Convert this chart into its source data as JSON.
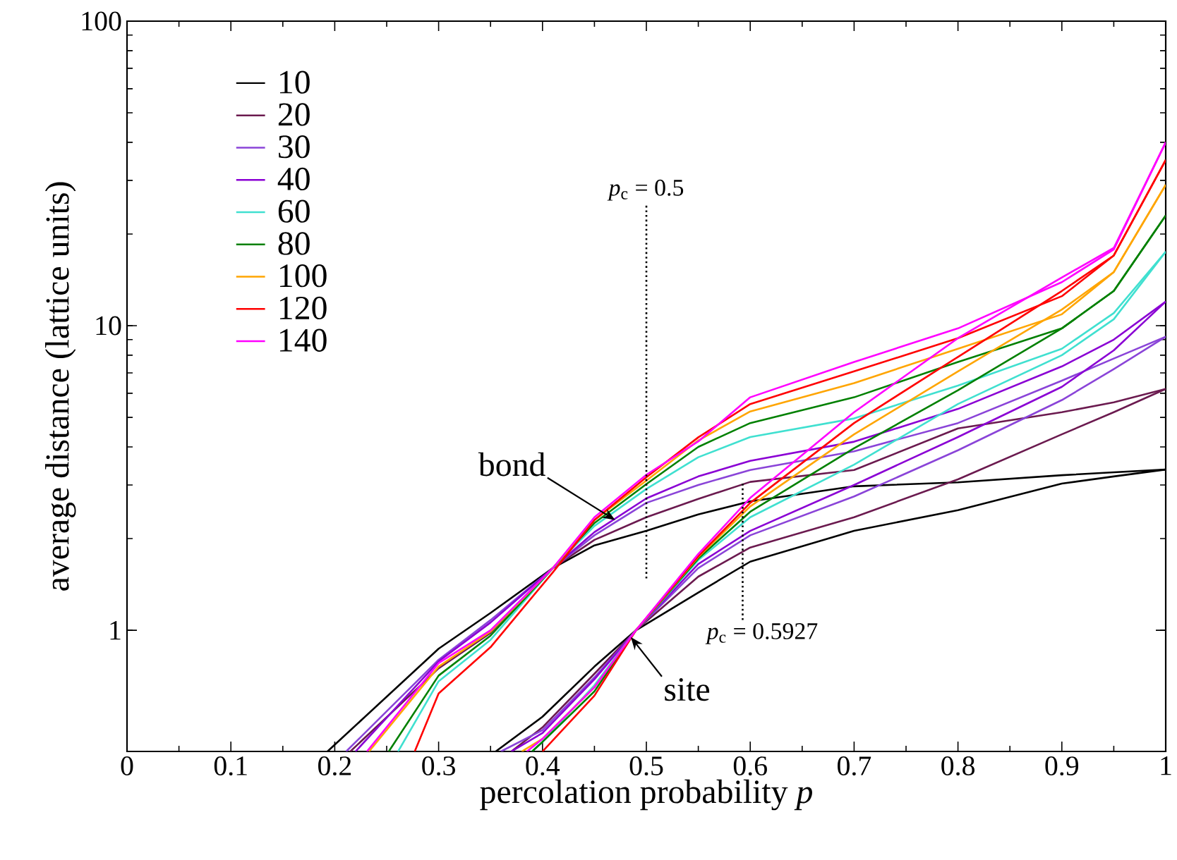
{
  "chart_data": {
    "type": "line",
    "xlabel": "percolation probability *p*",
    "ylabel": "average distance (lattice units)",
    "xlim": [
      0,
      1
    ],
    "ylim": [
      0.4,
      100
    ],
    "log": "y",
    "xticks": [
      0,
      0.1,
      0.2,
      0.3,
      0.4,
      0.5,
      0.6,
      0.7,
      0.8,
      0.9,
      1
    ],
    "yticks": [
      1,
      10,
      100
    ],
    "legend": "top left",
    "marker": "none",
    "line_style": "solid",
    "series": [
      {
        "name": "10",
        "color": "#000000",
        "x": [
          0.193,
          0.3,
          0.35,
          0.41,
          0.45,
          0.5,
          0.55,
          0.6,
          0.7,
          0.8,
          0.9,
          0.95,
          1.0
        ],
        "values": [
          0.4,
          0.87,
          1.14,
          1.6,
          1.9,
          2.12,
          2.4,
          2.65,
          2.97,
          3.06,
          3.23,
          3.3,
          3.37
        ]
      },
      {
        "name": "20",
        "color": "#6b1a4f",
        "x": [
          0.215,
          0.3,
          0.35,
          0.41,
          0.45,
          0.5,
          0.55,
          0.6,
          0.7,
          0.8,
          0.9,
          0.95,
          1.0
        ],
        "values": [
          0.4,
          0.75,
          0.98,
          1.6,
          1.98,
          2.35,
          2.7,
          3.07,
          3.36,
          4.6,
          5.2,
          5.6,
          6.2
        ]
      },
      {
        "name": "30",
        "color": "#8a44d8",
        "x": [
          0.211,
          0.3,
          0.35,
          0.41,
          0.45,
          0.5,
          0.55,
          0.6,
          0.7,
          0.8,
          0.9,
          0.95,
          1.0
        ],
        "values": [
          0.4,
          0.8,
          1.08,
          1.6,
          2.05,
          2.62,
          3.0,
          3.36,
          3.87,
          4.79,
          6.6,
          7.8,
          9.2
        ]
      },
      {
        "name": "40",
        "color": "#8a00d4",
        "x": [
          0.22,
          0.3,
          0.35,
          0.41,
          0.45,
          0.5,
          0.55,
          0.6,
          0.7,
          0.8,
          0.9,
          0.95,
          1.0
        ],
        "values": [
          0.4,
          0.79,
          1.06,
          1.6,
          2.1,
          2.71,
          3.2,
          3.6,
          4.16,
          5.33,
          7.35,
          9.0,
          12
        ]
      },
      {
        "name": "60",
        "color": "#40e0d0",
        "x": [
          0.261,
          0.3,
          0.35,
          0.41,
          0.45,
          0.5,
          0.55,
          0.6,
          0.7,
          0.8,
          0.9,
          0.95,
          1.0
        ],
        "values": [
          0.4,
          0.68,
          0.93,
          1.6,
          2.2,
          2.91,
          3.7,
          4.31,
          4.96,
          6.36,
          8.4,
          11,
          17.5
        ]
      },
      {
        "name": "80",
        "color": "#008000",
        "x": [
          0.252,
          0.3,
          0.35,
          0.41,
          0.45,
          0.5,
          0.55,
          0.6,
          0.7,
          0.8,
          0.9,
          0.95,
          1.0
        ],
        "values": [
          0.4,
          0.71,
          0.96,
          1.6,
          2.25,
          3.02,
          4.0,
          4.79,
          5.82,
          7.6,
          9.8,
          13,
          23
        ]
      },
      {
        "name": "100",
        "color": "#ffa500",
        "x": [
          0.233,
          0.3,
          0.35,
          0.41,
          0.45,
          0.5,
          0.55,
          0.6,
          0.7,
          0.8,
          0.9,
          0.95,
          1.0
        ],
        "values": [
          0.4,
          0.76,
          0.99,
          1.6,
          2.3,
          3.1,
          4.2,
          5.23,
          6.48,
          8.4,
          10.9,
          15,
          29
        ]
      },
      {
        "name": "120",
        "color": "#ff0000",
        "x": [
          0.277,
          0.3,
          0.35,
          0.41,
          0.45,
          0.5,
          0.55,
          0.6,
          0.7,
          0.8,
          0.9,
          0.95,
          1.0
        ],
        "values": [
          0.4,
          0.62,
          0.88,
          1.55,
          2.3,
          3.18,
          4.3,
          5.53,
          7.08,
          9.1,
          12.5,
          17,
          35
        ]
      },
      {
        "name": "140",
        "color": "#ff00ff",
        "x": [
          0.231,
          0.3,
          0.35,
          0.41,
          0.45,
          0.5,
          0.55,
          0.6,
          0.7,
          0.8,
          0.9,
          0.95,
          1.0
        ],
        "values": [
          0.4,
          0.78,
          1.0,
          1.6,
          2.35,
          3.24,
          4.17,
          5.82,
          7.6,
          9.8,
          13.9,
          17.8,
          40
        ]
      },
      {
        "color": "#000000",
        "x": [
          0.355,
          0.4,
          0.45,
          0.49,
          0.55,
          0.6,
          0.7,
          0.8,
          0.9,
          0.95,
          1.0
        ],
        "values": [
          0.4,
          0.52,
          0.76,
          1.0,
          1.33,
          1.68,
          2.12,
          2.48,
          3.03,
          3.2,
          3.37
        ]
      },
      {
        "color": "#6b1a4f",
        "x": [
          0.37,
          0.4,
          0.45,
          0.49,
          0.55,
          0.6,
          0.7,
          0.8,
          0.9,
          0.95,
          1.0
        ],
        "values": [
          0.4,
          0.48,
          0.72,
          1.0,
          1.5,
          1.87,
          2.35,
          3.13,
          4.4,
          5.2,
          6.2
        ]
      },
      {
        "color": "#8a44d8",
        "x": [
          0.36,
          0.4,
          0.45,
          0.49,
          0.55,
          0.6,
          0.7,
          0.8,
          0.9,
          0.95,
          1.0
        ],
        "values": [
          0.4,
          0.47,
          0.7,
          1.0,
          1.6,
          2.05,
          2.75,
          3.9,
          5.7,
          7.2,
          9.2
        ]
      },
      {
        "color": "#8a00d4",
        "x": [
          0.37,
          0.4,
          0.45,
          0.49,
          0.55,
          0.6,
          0.7,
          0.8,
          0.9,
          0.95,
          1.0
        ],
        "values": [
          0.4,
          0.46,
          0.69,
          1.0,
          1.65,
          2.12,
          3.0,
          4.31,
          6.3,
          8.3,
          12
        ]
      },
      {
        "color": "#40e0d0",
        "x": [
          0.39,
          0.4,
          0.45,
          0.49,
          0.55,
          0.6,
          0.7,
          0.8,
          0.9,
          0.95,
          1.0
        ],
        "values": [
          0.4,
          0.43,
          0.66,
          1.0,
          1.7,
          2.35,
          3.5,
          5.53,
          8.0,
          10.5,
          17.5
        ]
      },
      {
        "color": "#008000",
        "x": [
          0.39,
          0.4,
          0.45,
          0.49,
          0.55,
          0.6,
          0.7,
          0.8,
          0.9,
          0.95,
          1.0
        ],
        "values": [
          0.4,
          0.43,
          0.63,
          1.0,
          1.72,
          2.45,
          3.96,
          6.14,
          9.8,
          13,
          23
        ]
      },
      {
        "color": "#ffa500",
        "x": [
          0.38,
          0.4,
          0.45,
          0.49,
          0.55,
          0.6,
          0.7,
          0.8,
          0.9,
          0.95,
          1.0
        ],
        "values": [
          0.4,
          0.44,
          0.65,
          1.0,
          1.74,
          2.55,
          4.4,
          7.08,
          11.3,
          15,
          29
        ]
      },
      {
        "color": "#ff0000",
        "x": [
          0.4,
          0.45,
          0.49,
          0.55,
          0.6,
          0.7,
          0.8,
          0.9,
          0.95,
          1.0
        ],
        "values": [
          0.4,
          0.61,
          1.0,
          1.75,
          2.62,
          4.79,
          7.9,
          13,
          17,
          35
        ]
      },
      {
        "color": "#ff00ff",
        "x": [
          0.385,
          0.4,
          0.45,
          0.49,
          0.55,
          0.6,
          0.7,
          0.8,
          0.9,
          0.95,
          1.0
        ],
        "values": [
          0.4,
          0.44,
          0.65,
          1.0,
          1.78,
          2.72,
          5.2,
          9.1,
          14.4,
          18,
          40
        ]
      }
    ],
    "ref_lines": [
      {
        "axis": "x",
        "value": 0.5,
        "label": "*p*$_{c}$ = 0.5",
        "line_style": "dotted",
        "color": "#000000"
      },
      {
        "axis": "x",
        "value": 0.5927,
        "label": "*p*$_{c}$ = 0.5927",
        "line_style": "dotted",
        "color": "#000000"
      }
    ],
    "annotations": [
      {
        "text": "bond",
        "x": 0.47,
        "y": 2.3
      },
      {
        "text": "site",
        "x": 0.485,
        "y": 0.95
      }
    ]
  }
}
